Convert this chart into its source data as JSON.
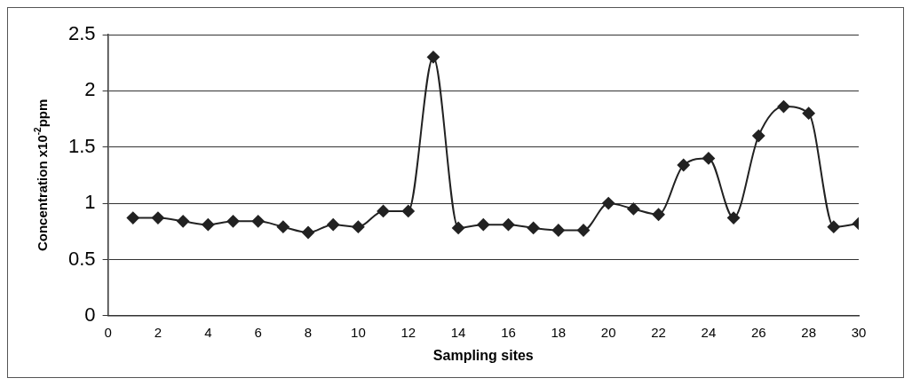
{
  "chart_data": {
    "type": "line",
    "xlabel": "Sampling sites",
    "ylabel": "Concentration x10$^{-2}$ppm",
    "x": [
      1,
      2,
      3,
      4,
      5,
      6,
      7,
      8,
      9,
      10,
      11,
      12,
      13,
      14,
      15,
      16,
      17,
      18,
      19,
      20,
      21,
      22,
      23,
      24,
      25,
      26,
      27,
      28,
      29,
      30
    ],
    "series": [
      {
        "color": "#222222",
        "values": [
          0.87,
          0.87,
          0.84,
          0.81,
          0.84,
          0.84,
          0.79,
          0.74,
          0.81,
          0.79,
          0.93,
          0.93,
          2.3,
          0.78,
          0.81,
          0.81,
          0.78,
          0.76,
          0.76,
          1.0,
          0.95,
          0.9,
          1.34,
          1.4,
          0.87,
          1.6,
          1.86,
          1.8,
          0.79,
          0.82
        ]
      }
    ],
    "xlim": [
      0,
      30
    ],
    "xticks": [
      0,
      2,
      4,
      6,
      8,
      10,
      12,
      14,
      16,
      18,
      20,
      22,
      24,
      26,
      28,
      30
    ],
    "ylim": [
      0,
      2.5
    ],
    "yticks": [
      0,
      0.5,
      1,
      1.5,
      2,
      2.5
    ],
    "grid": "y",
    "legend": false,
    "marker": "diamond",
    "line_style": "solid"
  }
}
